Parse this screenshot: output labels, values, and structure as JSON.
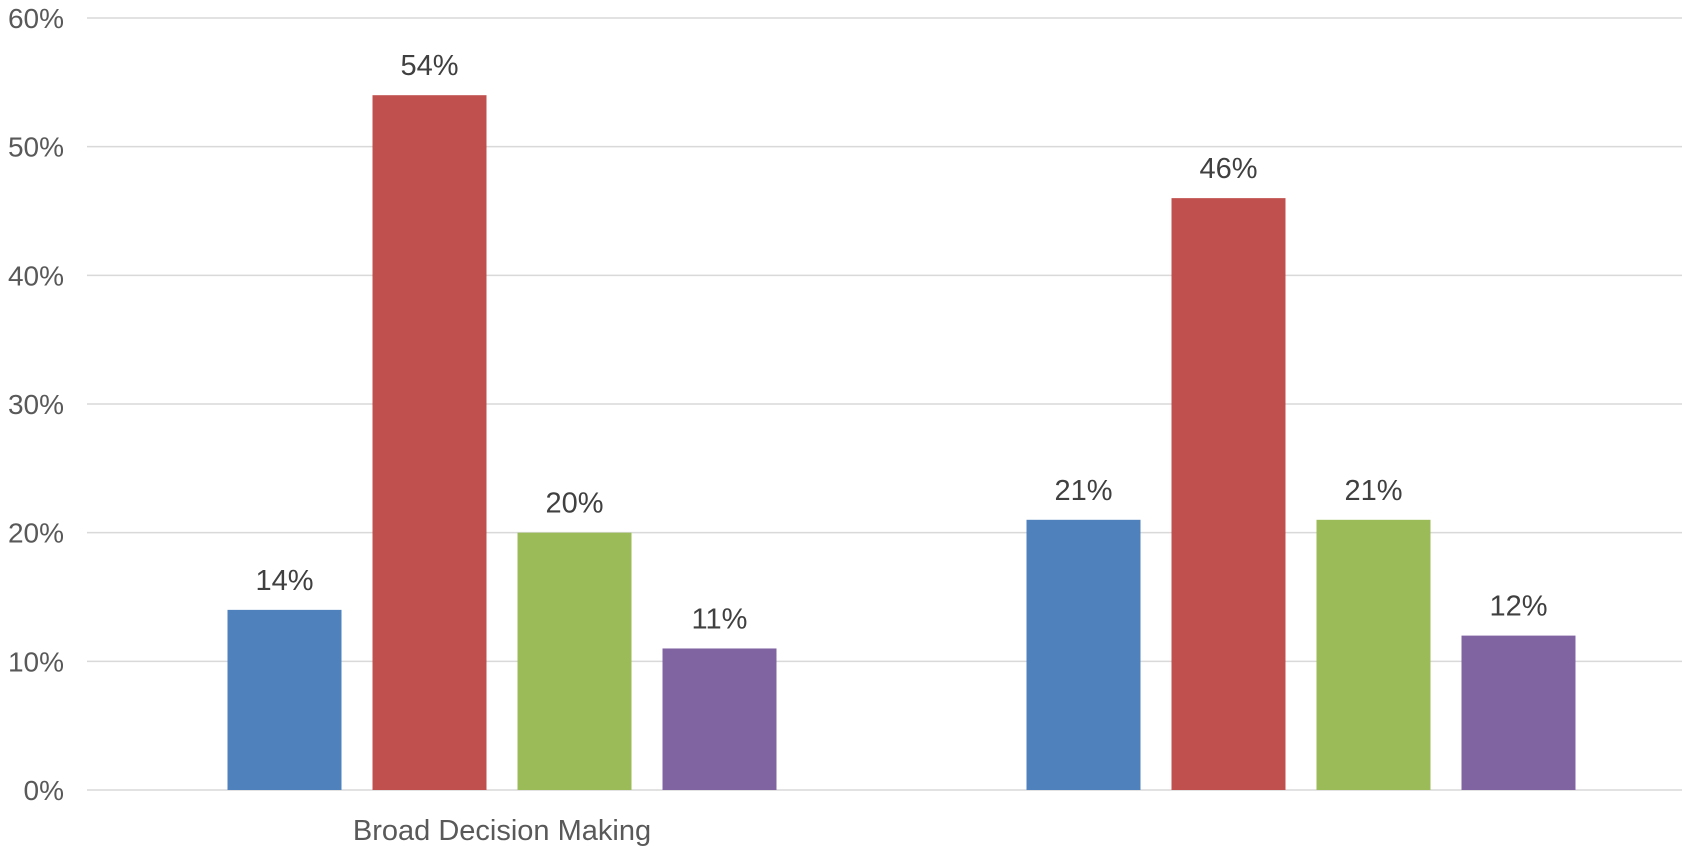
{
  "chart_data": {
    "type": "bar",
    "categories": [
      "Broad Decision Making",
      ""
    ],
    "series": [
      {
        "values": [
          14,
          21
        ],
        "color": "#4f81bd"
      },
      {
        "values": [
          54,
          46
        ],
        "color": "#c0504d"
      },
      {
        "values": [
          20,
          21
        ],
        "color": "#9bbb59"
      },
      {
        "values": [
          11,
          12
        ],
        "color": "#8064a2"
      }
    ],
    "data_labels": [
      [
        "14%",
        "21%"
      ],
      [
        "54%",
        "46%"
      ],
      [
        "20%",
        "21%"
      ],
      [
        "11%",
        "12%"
      ]
    ],
    "y_ticks": [
      "0%",
      "10%",
      "20%",
      "30%",
      "40%",
      "50%",
      "60%"
    ],
    "ylim": [
      0,
      60
    ],
    "y_unit": "%",
    "grid": true,
    "legend": "none",
    "title": "",
    "xlabel": "",
    "ylabel": ""
  }
}
